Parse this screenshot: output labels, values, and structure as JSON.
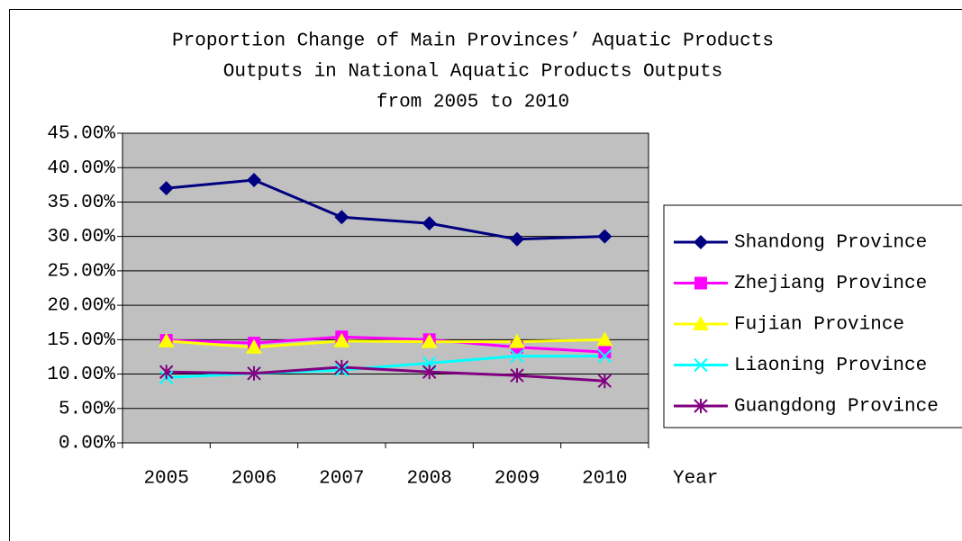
{
  "chart_data": {
    "type": "line",
    "title": [
      "Proportion Change of Main Provinces’ Aquatic Products",
      "Outputs in National Aquatic Products Outputs",
      "from 2005 to 2010"
    ],
    "x_label": "Year",
    "categories": [
      "2005",
      "2006",
      "2007",
      "2008",
      "2009",
      "2010"
    ],
    "series": [
      {
        "name": "Shandong Province",
        "color": "#000080",
        "marker": "diamond",
        "values": [
          37.0,
          38.2,
          32.8,
          31.9,
          29.6,
          30.0
        ]
      },
      {
        "name": "Zhejiang Province",
        "color": "#ff00ff",
        "marker": "square",
        "values": [
          14.9,
          14.5,
          15.4,
          15.0,
          13.9,
          13.2
        ]
      },
      {
        "name": "Fujian Province",
        "color": "#ffff00",
        "marker": "triangle",
        "values": [
          14.8,
          13.9,
          14.8,
          14.7,
          14.7,
          15.0
        ]
      },
      {
        "name": "Liaoning Province",
        "color": "#00ffff",
        "marker": "x",
        "values": [
          9.5,
          10.1,
          10.6,
          11.6,
          12.6,
          12.6
        ]
      },
      {
        "name": "Guangdong Province",
        "color": "#800080",
        "marker": "asterisk",
        "values": [
          10.3,
          10.1,
          11.0,
          10.3,
          9.8,
          9.0
        ]
      }
    ],
    "ylim": [
      0,
      45
    ],
    "yticks": [
      {
        "value": 0,
        "label": "0.00%"
      },
      {
        "value": 5,
        "label": "5.00%"
      },
      {
        "value": 10,
        "label": "10.00%"
      },
      {
        "value": 15,
        "label": "15.00%"
      },
      {
        "value": 20,
        "label": "20.00%"
      },
      {
        "value": 25,
        "label": "25.00%"
      },
      {
        "value": 30,
        "label": "30.00%"
      },
      {
        "value": 35,
        "label": "35.00%"
      },
      {
        "value": 40,
        "label": "40.00%"
      },
      {
        "value": 45,
        "label": "45.00%"
      }
    ],
    "grid": true,
    "plot_background": "#c0c0c0",
    "legend": "right"
  }
}
